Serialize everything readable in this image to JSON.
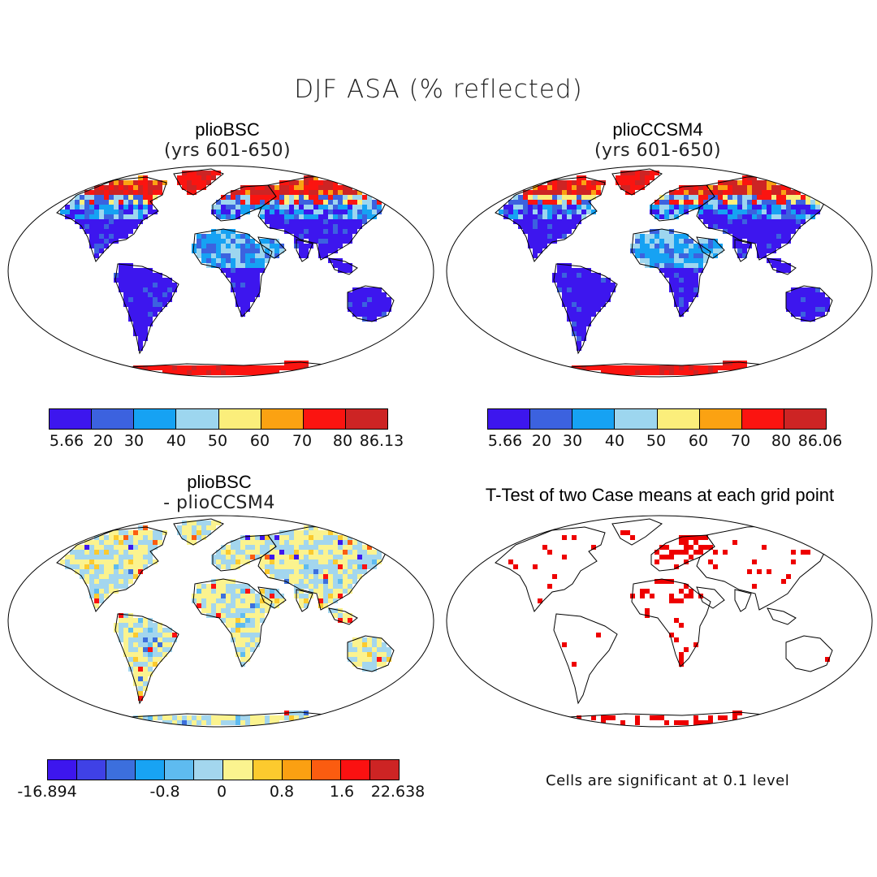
{
  "figure": {
    "title": "DJF ASA (% reflected)"
  },
  "panels": [
    {
      "id": "tl",
      "title": "plioBSC",
      "subtitle": "(yrs 601-650)",
      "palette": [
        "#3d16ee",
        "#3c62df",
        "#16a2f3",
        "#9dd6ef",
        "#fbee7b",
        "#fba212",
        "#fb1410",
        "#cd2424"
      ],
      "tick_labels": [
        "5.66",
        "20",
        "30",
        "40",
        "50",
        "60",
        "70",
        "80",
        "86.13"
      ]
    },
    {
      "id": "tr",
      "title": "plioCCSM4",
      "subtitle": "(yrs 601-650)",
      "palette": [
        "#3d16ee",
        "#3c62df",
        "#16a2f3",
        "#9dd6ef",
        "#fbee7b",
        "#fba212",
        "#fb1410",
        "#cd2424"
      ],
      "tick_labels": [
        "5.66",
        "20",
        "30",
        "40",
        "50",
        "60",
        "70",
        "80",
        "86.06"
      ]
    },
    {
      "id": "bl",
      "title": "plioBSC",
      "subtitle": "- plioCCSM4",
      "palette": [
        "#3d16ee",
        "#3f41e6",
        "#3c6fdd",
        "#18a3f3",
        "#5ebbf0",
        "#a3d6ee",
        "#fbf38f",
        "#fcca2e",
        "#fba012",
        "#fb5c10",
        "#fb1111",
        "#cd2424"
      ],
      "tick_labels": [
        "-16.894",
        "-0.8",
        "0",
        "0.8",
        "1.6",
        "22.638"
      ]
    },
    {
      "id": "br",
      "title": "T-Test of two Case means at each grid point",
      "note": "Cells are significant at 0.1 level"
    }
  ],
  "colors": {
    "land_low": "#3d16ee",
    "land_mid": "#16a2f3",
    "snow_high": "#fb1410",
    "snow_max": "#cd2424",
    "diff_neutral": "#fbf38f",
    "diff_cool": "#a3d6ee",
    "significant": "#ee0000"
  }
}
